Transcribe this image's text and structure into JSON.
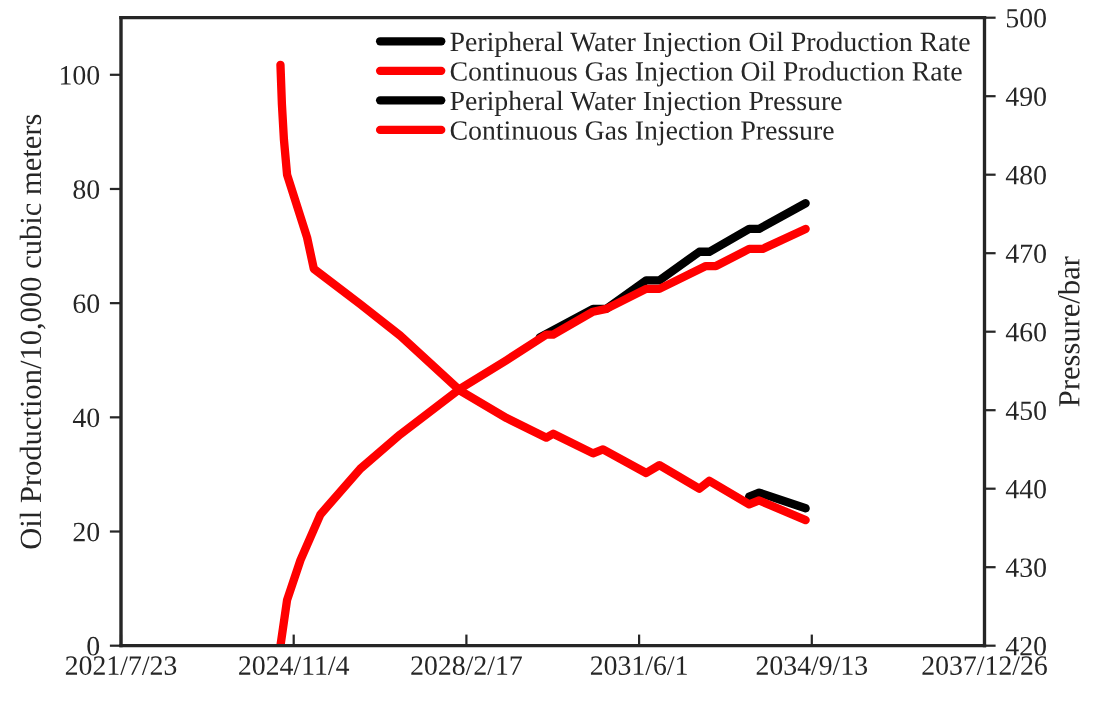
{
  "chart_data": {
    "type": "line",
    "ylabel": "Oil Production/10,000 cubic meters",
    "y2label": "Pressure/bar",
    "xlim": [
      "2021-07-23",
      "2037-12-26"
    ],
    "xticks": [
      {
        "value": "2021-07-23",
        "label": "2021/7/23"
      },
      {
        "value": "2024-11-04",
        "label": "2024/11/4"
      },
      {
        "value": "2028-02-17",
        "label": "2028/2/17"
      },
      {
        "value": "2031-06-01",
        "label": "2031/6/1"
      },
      {
        "value": "2034-09-13",
        "label": "2034/9/13"
      },
      {
        "value": "2037-12-26",
        "label": "2037/12/26"
      }
    ],
    "ylim": [
      0,
      110
    ],
    "yticks": [
      0,
      20,
      40,
      60,
      80,
      100
    ],
    "y2lim": [
      420,
      500
    ],
    "y2ticks": [
      420,
      430,
      440,
      450,
      460,
      470,
      480,
      490,
      500
    ],
    "grid": false,
    "legend": "top right",
    "marker": "none",
    "line_style": "solid",
    "series": [
      {
        "name": "Peripheral Water Injection Oil Production Rate",
        "color": "#000000",
        "axis": "y",
        "x": [
          "2029-07-11",
          "2030-07-16",
          "2030-10-16",
          "2031-07-20",
          "2031-10-20",
          "2032-07-23",
          "2032-10-01",
          "2033-07-05",
          "2033-09-12",
          "2034-08-01"
        ],
        "values": [
          54,
          59,
          59,
          64,
          64,
          69,
          69,
          73,
          73,
          77.5
        ]
      },
      {
        "name": "Continuous Gas Injection Oil Production Rate",
        "color": "#ff0000",
        "axis": "y",
        "x": [
          "2024-08-04",
          "2024-09-19",
          "2024-12-21",
          "2025-05-09",
          "2026-02-10",
          "2026-11-14",
          "2028-01-04",
          "2028-11-22",
          "2029-08-26",
          "2029-10-12",
          "2030-07-16",
          "2030-10-16",
          "2031-07-20",
          "2031-10-20",
          "2032-09-07",
          "2032-11-16",
          "2033-07-05",
          "2033-10-06",
          "2034-08-01"
        ],
        "values": [
          0,
          8,
          15,
          23,
          31,
          37,
          45,
          50,
          54.5,
          54.5,
          58.5,
          59,
          62.5,
          62.5,
          66.5,
          66.5,
          69.5,
          69.5,
          73
        ]
      },
      {
        "name": "Peripheral Water Injection Pressure",
        "color": "#000000",
        "axis": "y2",
        "x": [
          "2033-07-05",
          "2033-09-12",
          "2034-08-01"
        ],
        "values": [
          439,
          439.5,
          437.5
        ]
      },
      {
        "name": "Continuous Gas Injection Pressure",
        "color": "#ff0000",
        "axis": "y2",
        "x": [
          "2024-08-04",
          "2024-08-14",
          "2024-08-28",
          "2024-09-19",
          "2025-02-05",
          "2025-03-24",
          "2026-02-10",
          "2026-11-14",
          "2028-01-04",
          "2028-11-22",
          "2029-08-26",
          "2029-10-12",
          "2030-07-16",
          "2030-09-23",
          "2031-07-20",
          "2031-10-20",
          "2032-07-23",
          "2032-10-01",
          "2033-07-05",
          "2033-09-12",
          "2034-08-01"
        ],
        "values": [
          494,
          489,
          484.5,
          480,
          472,
          468,
          463.5,
          459.5,
          452.5,
          449,
          446.5,
          447,
          444.5,
          445,
          442,
          443,
          440,
          441,
          438,
          438.5,
          436
        ]
      }
    ]
  }
}
